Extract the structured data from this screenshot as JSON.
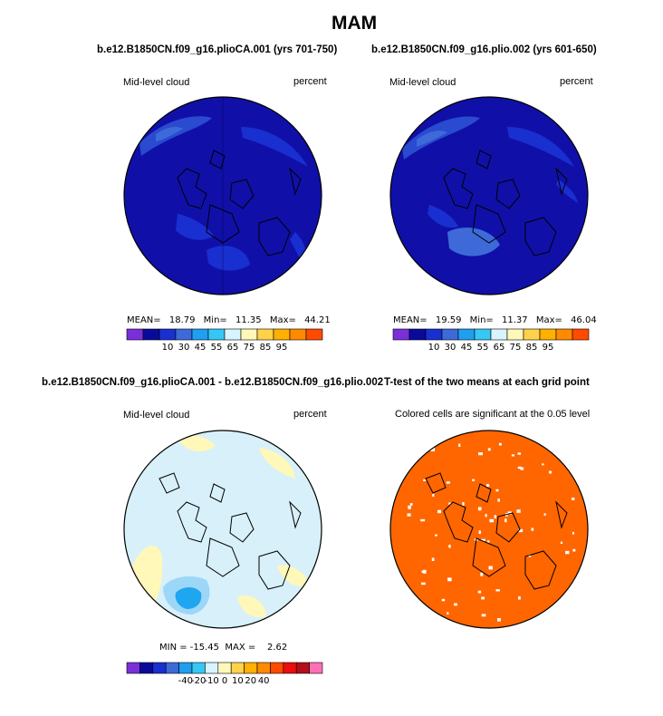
{
  "figure": {
    "title": "MAM"
  },
  "panels": [
    {
      "title": "b.e12.B1850CN.f09_g16.plioCA.001 (yrs 701-750)",
      "left_label": "Mid-level cloud",
      "right_label": "percent",
      "stats": {
        "mean_label": "MEAN=",
        "mean": "18.79",
        "min_label": "Min=",
        "min": "11.35",
        "max_label": "Max=",
        "max": "44.21"
      },
      "colorbar": {
        "ticks": [
          "10",
          "30",
          "45",
          "55",
          "65",
          "75",
          "85",
          "95"
        ]
      }
    },
    {
      "title": "b.e12.B1850CN.f09_g16.plio.002 (yrs 601-650)",
      "left_label": "Mid-level cloud",
      "right_label": "percent",
      "stats": {
        "mean_label": "MEAN=",
        "mean": "19.59",
        "min_label": "Min=",
        "min": "11.37",
        "max_label": "Max=",
        "max": "46.04"
      },
      "colorbar": {
        "ticks": [
          "10",
          "30",
          "45",
          "55",
          "65",
          "75",
          "85",
          "95"
        ]
      }
    },
    {
      "title": "b.e12.B1850CN.f09_g16.plioCA.001 - b.e12.B1850CN.f09_g16.plio.002",
      "left_label": "Mid-level cloud",
      "right_label": "percent",
      "stats_text": "MIN = -15.45  MAX =    2.62",
      "colorbar": {
        "ticks": [
          "-40",
          "-20",
          "-10",
          "0",
          "10",
          "20",
          "40"
        ]
      }
    },
    {
      "title": "T-test of the two means at each grid point",
      "subtitle": "Colored cells are significant at the 0.05 level"
    }
  ],
  "colors": {
    "abs_scale": [
      "#7b2fd9",
      "#0a0a9a",
      "#1a2fd0",
      "#3d6ad8",
      "#1e9ff0",
      "#35c7f5",
      "#d8f4ff",
      "#fff8b8",
      "#ffd24a",
      "#ffb000",
      "#ff8a00",
      "#ff4a00",
      "#ea0e0e",
      "#ff6fb5"
    ],
    "diff_scale": [
      "#7b2fd9",
      "#0a0a9a",
      "#1a2fd0",
      "#3d6ad8",
      "#1e9ff0",
      "#35c7f5",
      "#d8f4ff",
      "#fff8b8",
      "#ffd24a",
      "#ffb000",
      "#ff8a00",
      "#ff4a00",
      "#ea0e0e",
      "#b40e1a",
      "#ff6fb5"
    ],
    "map_base": "#1010a8",
    "diff_base": "#d8f0fa",
    "ttest_fill": "#ff6600"
  }
}
